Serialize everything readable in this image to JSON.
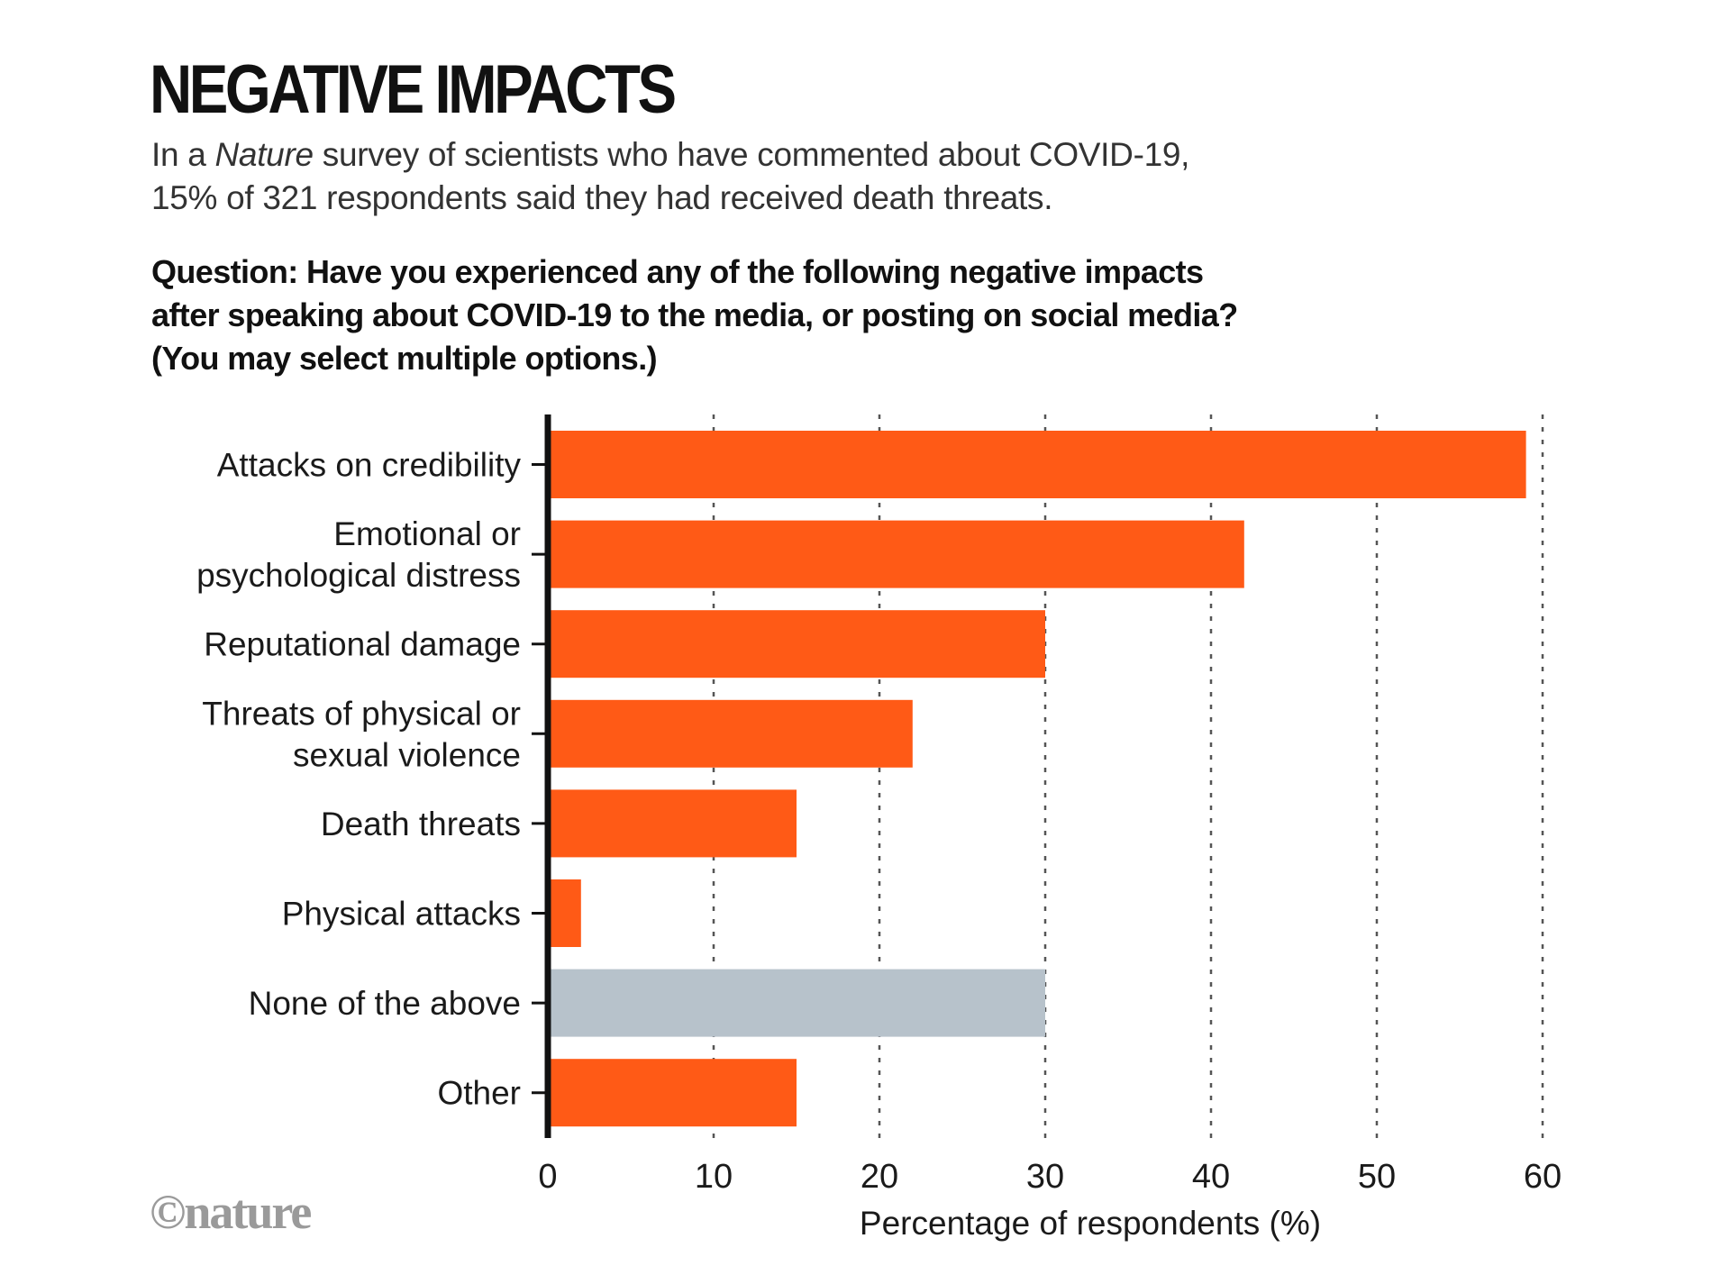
{
  "header": {
    "title": "NEGATIVE IMPACTS",
    "subtitle_pre": "In a ",
    "subtitle_italic": "Nature",
    "subtitle_line1_rest": " survey of scientists who have commented about COVID-19,",
    "subtitle_line2": "15% of 321 respondents said they had received death threats.",
    "question_lines": [
      "Question: Have you experienced any of the following negative impacts",
      "after speaking about COVID-19 to the media, or posting on social media?",
      "(You may select multiple options.)"
    ]
  },
  "footer": {
    "logo": "©nature"
  },
  "colors": {
    "primary_bar": "#ff5a16",
    "neutral_bar": "#b7c2cb",
    "axis": "#111111",
    "grid": "#555555"
  },
  "chart_data": {
    "type": "bar",
    "orientation": "horizontal",
    "title": "NEGATIVE IMPACTS",
    "xlabel": "Percentage of respondents (%)",
    "ylabel": "",
    "xlim": [
      0,
      60
    ],
    "xticks": [
      0,
      10,
      20,
      30,
      40,
      50,
      60
    ],
    "grid": "vertical dotted",
    "categories": [
      [
        "Attacks on credibility"
      ],
      [
        "Emotional or",
        "psychological distress"
      ],
      [
        "Reputational damage"
      ],
      [
        "Threats of physical or",
        "sexual violence"
      ],
      [
        "Death threats"
      ],
      [
        "Physical attacks"
      ],
      [
        "None of the above"
      ],
      [
        "Other"
      ]
    ],
    "values": [
      59,
      42,
      30,
      22,
      15,
      2,
      30,
      15
    ],
    "highlight": [
      "primary",
      "primary",
      "primary",
      "primary",
      "primary",
      "primary",
      "neutral",
      "primary"
    ]
  }
}
